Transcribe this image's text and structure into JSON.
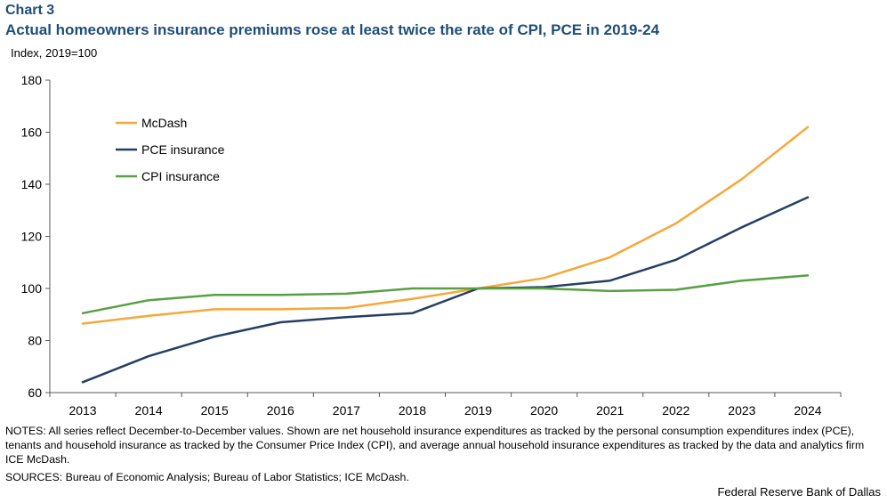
{
  "header": {
    "chart_label": "Chart 3",
    "title": "Actual homeowners insurance premiums rose at least twice the rate of CPI, PCE in 2019-24",
    "y_unit": "Index,  2019=100"
  },
  "footer": {
    "notes": "NOTES: All series reflect December-to-December values. Shown are net household insurance expenditures as tracked by the personal consumption expenditures index (PCE), tenants and household insurance as tracked by the Consumer Price Index (CPI), and average annual household insurance expenditures as tracked by the data and analytics firm ICE McDash.",
    "sources": "SOURCES: Bureau of Economic Analysis; Bureau of Labor Statistics; ICE McDash.",
    "credit": "Federal Reserve Bank of Dallas"
  },
  "chart_data": {
    "type": "line",
    "title": "Actual homeowners insurance premiums rose at least twice the rate of CPI, PCE in 2019-24",
    "xlabel": "",
    "ylabel": "Index,  2019=100",
    "ylim": [
      60,
      180
    ],
    "yticks": [
      60,
      80,
      100,
      120,
      140,
      160,
      180
    ],
    "x": [
      "2013",
      "2014",
      "2015",
      "2016",
      "2017",
      "2018",
      "2019",
      "2020",
      "2021",
      "2022",
      "2023",
      "2024"
    ],
    "grid": false,
    "legend_position": "top-left",
    "series": [
      {
        "name": "McDash",
        "color": "#f5a83a",
        "values": [
          86.5,
          89.5,
          92,
          92,
          92.5,
          96,
          100,
          104,
          112,
          125,
          142,
          162
        ]
      },
      {
        "name": "PCE insurance",
        "color": "#253f63",
        "values": [
          64,
          74,
          81.5,
          87,
          89,
          90.5,
          100,
          100.5,
          103,
          111,
          123.5,
          135
        ]
      },
      {
        "name": "CPI insurance",
        "color": "#58a043",
        "values": [
          90.5,
          95.5,
          97.5,
          97.5,
          98,
          100,
          100,
          100,
          99,
          99.5,
          103,
          105
        ]
      }
    ]
  }
}
